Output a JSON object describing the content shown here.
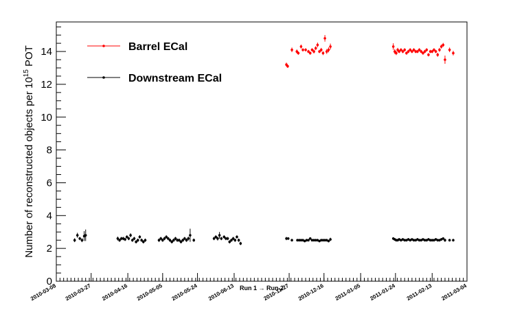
{
  "chart_data": {
    "type": "scatter",
    "ylabel_pre": "Number of reconstructed objects per 10",
    "ylabel_exp": "15",
    "ylabel_post": " POT",
    "xlabel": "",
    "ylim": [
      0,
      15.8
    ],
    "yticks": [
      0,
      2,
      4,
      6,
      8,
      10,
      12,
      14
    ],
    "ytick_labels": [
      "0",
      "2",
      "4",
      "6",
      "8",
      "10",
      "12",
      "14"
    ],
    "grid": false,
    "legend_position": "top-left",
    "run_separator_label": "Run 1 → Run 2",
    "x_tick_labels": [
      {
        "label": "2010-03-08",
        "x": 0
      },
      {
        "label": "2010-03-27",
        "x": 19
      },
      {
        "label": "2010-04-16",
        "x": 39
      },
      {
        "label": "2010-05-05",
        "x": 58
      },
      {
        "label": "2010-05-24",
        "x": 77
      },
      {
        "label": "2010-06-13",
        "x": 97
      },
      {
        "label": "2010-11-27",
        "x": 127
      },
      {
        "label": "2010-12-16",
        "x": 146
      },
      {
        "label": "2011-01-05",
        "x": 166
      },
      {
        "label": "2011-01-24",
        "x": 185
      },
      {
        "label": "2011-02-13",
        "x": 205
      },
      {
        "label": "2011-03-04",
        "x": 224
      }
    ],
    "xlim": [
      0,
      224
    ],
    "series": [
      {
        "name": "Barrel ECal",
        "color": "#ff0000",
        "points": [
          [
            125.5,
            13.2,
            0.12
          ],
          [
            126.2,
            13.1,
            0.1
          ],
          [
            128.5,
            14.1,
            0.14
          ],
          [
            131.2,
            14.0,
            0.12
          ],
          [
            132.0,
            13.9,
            0.1
          ],
          [
            133.5,
            14.3,
            0.12
          ],
          [
            134.5,
            14.1,
            0.1
          ],
          [
            136.0,
            14.1,
            0.1
          ],
          [
            137.5,
            14.0,
            0.1
          ],
          [
            138.5,
            13.9,
            0.1
          ],
          [
            139.5,
            14.1,
            0.1
          ],
          [
            140.5,
            14.0,
            0.12
          ],
          [
            141.5,
            14.2,
            0.12
          ],
          [
            142.5,
            14.4,
            0.14
          ],
          [
            143.5,
            14.0,
            0.1
          ],
          [
            144.5,
            14.1,
            0.12
          ],
          [
            145.5,
            13.9,
            0.12
          ],
          [
            146.5,
            14.8,
            0.2
          ],
          [
            147.5,
            14.0,
            0.15
          ],
          [
            148.5,
            14.1,
            0.15
          ],
          [
            149.5,
            14.3,
            0.18
          ],
          [
            183.8,
            14.3,
            0.2
          ],
          [
            184.6,
            14.0,
            0.15
          ],
          [
            185.4,
            13.9,
            0.12
          ],
          [
            186.2,
            14.1,
            0.12
          ],
          [
            187.0,
            14.0,
            0.1
          ],
          [
            188.0,
            14.1,
            0.1
          ],
          [
            189.0,
            14.0,
            0.1
          ],
          [
            190.0,
            14.1,
            0.1
          ],
          [
            191.0,
            13.9,
            0.1
          ],
          [
            192.0,
            14.0,
            0.1
          ],
          [
            193.0,
            14.1,
            0.1
          ],
          [
            194.0,
            14.0,
            0.1
          ],
          [
            195.0,
            14.1,
            0.1
          ],
          [
            196.0,
            14.0,
            0.1
          ],
          [
            197.0,
            14.0,
            0.1
          ],
          [
            198.0,
            14.1,
            0.1
          ],
          [
            199.0,
            14.0,
            0.1
          ],
          [
            200.0,
            13.9,
            0.1
          ],
          [
            201.0,
            14.0,
            0.1
          ],
          [
            202.0,
            14.1,
            0.1
          ],
          [
            203.0,
            13.8,
            0.1
          ],
          [
            204.0,
            14.0,
            0.1
          ],
          [
            205.0,
            14.0,
            0.1
          ],
          [
            206.0,
            14.1,
            0.1
          ],
          [
            207.0,
            14.0,
            0.1
          ],
          [
            208.0,
            13.8,
            0.12
          ],
          [
            209.0,
            14.1,
            0.12
          ],
          [
            210.0,
            14.3,
            0.12
          ],
          [
            211.0,
            14.4,
            0.12
          ],
          [
            212.0,
            13.5,
            0.25
          ],
          [
            214.5,
            14.1,
            0.14
          ],
          [
            216.5,
            13.9,
            0.14
          ]
        ]
      },
      {
        "name": "Downstream ECal",
        "color": "#000000",
        "points": [
          [
            10.0,
            2.5,
            0.12
          ],
          [
            11.5,
            2.8,
            0.15
          ],
          [
            12.8,
            2.6,
            0.1
          ],
          [
            14.0,
            2.5,
            0.12
          ],
          [
            15.2,
            2.75,
            0.3
          ],
          [
            16.0,
            2.8,
            0.35
          ],
          [
            33.5,
            2.6,
            0.12
          ],
          [
            34.5,
            2.5,
            0.1
          ],
          [
            35.5,
            2.6,
            0.1
          ],
          [
            36.5,
            2.6,
            0.1
          ],
          [
            37.5,
            2.55,
            0.1
          ],
          [
            38.5,
            2.7,
            0.1
          ],
          [
            39.5,
            2.6,
            0.1
          ],
          [
            40.5,
            2.8,
            0.12
          ],
          [
            41.5,
            2.5,
            0.1
          ],
          [
            42.5,
            2.6,
            0.1
          ],
          [
            43.5,
            2.4,
            0.1
          ],
          [
            44.5,
            2.5,
            0.1
          ],
          [
            45.5,
            2.7,
            0.1
          ],
          [
            46.5,
            2.5,
            0.1
          ],
          [
            47.5,
            2.4,
            0.1
          ],
          [
            48.5,
            2.5,
            0.1
          ],
          [
            56.0,
            2.5,
            0.1
          ],
          [
            57.0,
            2.6,
            0.1
          ],
          [
            58.0,
            2.5,
            0.1
          ],
          [
            59.0,
            2.6,
            0.1
          ],
          [
            60.0,
            2.7,
            0.1
          ],
          [
            61.0,
            2.6,
            0.1
          ],
          [
            62.0,
            2.5,
            0.1
          ],
          [
            63.0,
            2.4,
            0.1
          ],
          [
            64.0,
            2.5,
            0.1
          ],
          [
            65.0,
            2.6,
            0.1
          ],
          [
            66.0,
            2.5,
            0.1
          ],
          [
            67.0,
            2.5,
            0.1
          ],
          [
            68.0,
            2.4,
            0.1
          ],
          [
            69.0,
            2.5,
            0.1
          ],
          [
            70.0,
            2.6,
            0.1
          ],
          [
            71.0,
            2.5,
            0.1
          ],
          [
            72.0,
            2.6,
            0.12
          ],
          [
            73.0,
            2.8,
            0.4
          ],
          [
            75.0,
            2.5,
            0.1
          ],
          [
            86.0,
            2.6,
            0.1
          ],
          [
            87.0,
            2.7,
            0.1
          ],
          [
            88.0,
            2.6,
            0.12
          ],
          [
            89.0,
            2.8,
            0.2
          ],
          [
            90.0,
            2.6,
            0.1
          ],
          [
            91.5,
            2.7,
            0.1
          ],
          [
            92.5,
            2.6,
            0.1
          ],
          [
            93.5,
            2.6,
            0.1
          ],
          [
            94.5,
            2.4,
            0.1
          ],
          [
            95.5,
            2.5,
            0.1
          ],
          [
            96.5,
            2.6,
            0.1
          ],
          [
            97.5,
            2.5,
            0.1
          ],
          [
            98.5,
            2.7,
            0.1
          ],
          [
            99.5,
            2.5,
            0.1
          ],
          [
            100.5,
            2.3,
            0.1
          ],
          [
            125.5,
            2.6,
            0.1
          ],
          [
            126.5,
            2.6,
            0.08
          ],
          [
            128.5,
            2.5,
            0.08
          ],
          [
            131.5,
            2.5,
            0.08
          ],
          [
            132.5,
            2.5,
            0.08
          ],
          [
            133.5,
            2.5,
            0.08
          ],
          [
            134.5,
            2.5,
            0.08
          ],
          [
            135.5,
            2.45,
            0.08
          ],
          [
            136.5,
            2.5,
            0.08
          ],
          [
            137.5,
            2.5,
            0.08
          ],
          [
            138.5,
            2.6,
            0.08
          ],
          [
            139.5,
            2.5,
            0.08
          ],
          [
            140.5,
            2.5,
            0.08
          ],
          [
            141.5,
            2.5,
            0.08
          ],
          [
            142.5,
            2.5,
            0.08
          ],
          [
            143.5,
            2.45,
            0.08
          ],
          [
            144.5,
            2.5,
            0.08
          ],
          [
            145.5,
            2.5,
            0.08
          ],
          [
            146.5,
            2.5,
            0.08
          ],
          [
            147.5,
            2.5,
            0.08
          ],
          [
            148.5,
            2.45,
            0.08
          ],
          [
            149.5,
            2.55,
            0.1
          ],
          [
            183.8,
            2.6,
            0.08
          ],
          [
            184.6,
            2.55,
            0.08
          ],
          [
            185.4,
            2.5,
            0.08
          ],
          [
            186.2,
            2.5,
            0.08
          ],
          [
            187.0,
            2.55,
            0.08
          ],
          [
            188.0,
            2.5,
            0.08
          ],
          [
            189.0,
            2.55,
            0.08
          ],
          [
            190.0,
            2.5,
            0.08
          ],
          [
            191.0,
            2.5,
            0.08
          ],
          [
            192.0,
            2.55,
            0.08
          ],
          [
            193.0,
            2.5,
            0.08
          ],
          [
            194.0,
            2.55,
            0.08
          ],
          [
            195.0,
            2.5,
            0.08
          ],
          [
            196.0,
            2.5,
            0.08
          ],
          [
            197.0,
            2.55,
            0.08
          ],
          [
            198.0,
            2.5,
            0.08
          ],
          [
            199.0,
            2.5,
            0.08
          ],
          [
            200.0,
            2.55,
            0.08
          ],
          [
            201.0,
            2.5,
            0.08
          ],
          [
            202.0,
            2.5,
            0.08
          ],
          [
            203.0,
            2.55,
            0.08
          ],
          [
            204.0,
            2.5,
            0.08
          ],
          [
            205.0,
            2.5,
            0.08
          ],
          [
            206.0,
            2.5,
            0.08
          ],
          [
            207.0,
            2.55,
            0.08
          ],
          [
            208.0,
            2.5,
            0.08
          ],
          [
            209.0,
            2.5,
            0.08
          ],
          [
            210.0,
            2.55,
            0.08
          ],
          [
            211.0,
            2.6,
            0.08
          ],
          [
            212.0,
            2.5,
            0.1
          ],
          [
            214.5,
            2.5,
            0.08
          ],
          [
            216.5,
            2.5,
            0.08
          ]
        ]
      }
    ]
  }
}
